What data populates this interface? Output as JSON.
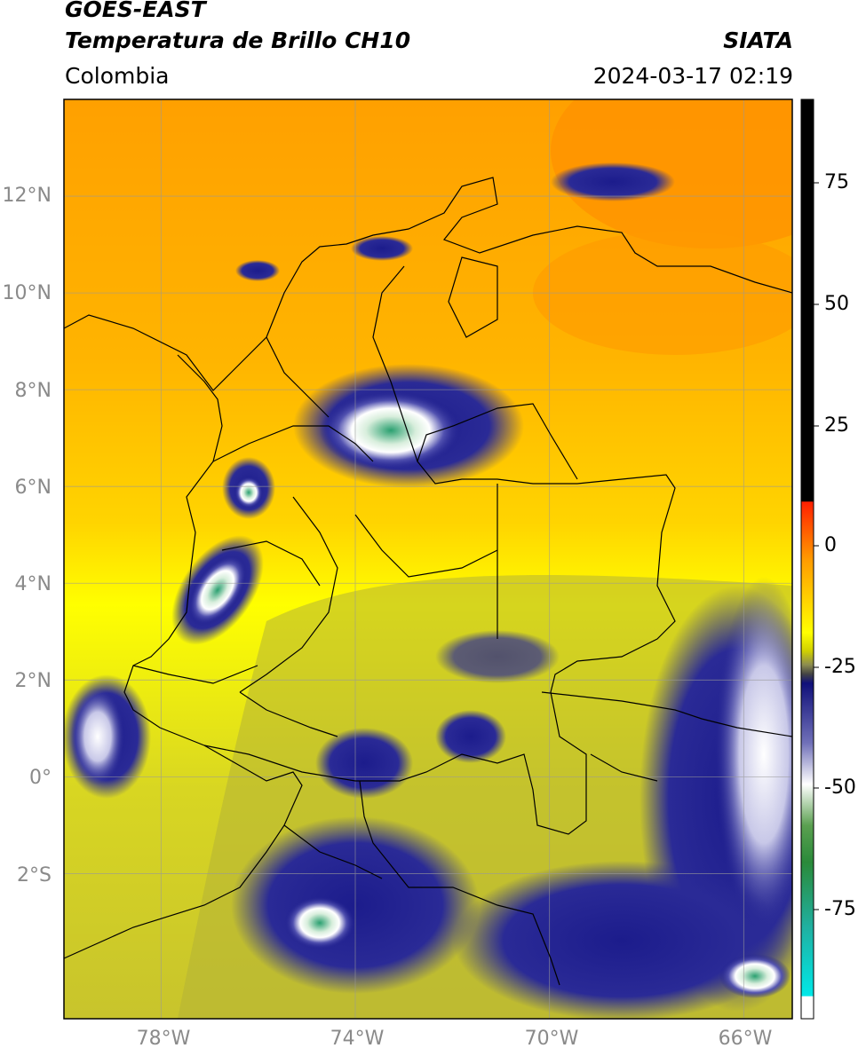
{
  "header": {
    "satellite": "GOES-EAST",
    "product": "Temperatura de Brillo CH10",
    "region": "Colombia",
    "source": "SIATA",
    "datetime": "2024-03-17 02:19"
  },
  "map": {
    "lon_range": [
      -80,
      -65
    ],
    "lat_range": [
      -5,
      14
    ],
    "lat_ticks": [
      "12°N",
      "10°N",
      "8°N",
      "6°N",
      "4°N",
      "2°N",
      "0°",
      "2°S"
    ],
    "lon_ticks": [
      "78°W",
      "74°W",
      "70°W",
      "66°W"
    ],
    "grid": true
  },
  "colorbar": {
    "ticks": [
      "75",
      "50",
      "25",
      "0",
      "-25",
      "-50",
      "-75"
    ],
    "range": [
      -97,
      90
    ],
    "colors": {
      "warm_black": "#000000",
      "red": "#ff2000",
      "orange": "#ff9a00",
      "yellow": "#ffff00",
      "olive": "#a8a83a",
      "navy": "#1c1c8c",
      "white": "#ffffff",
      "green": "#2e8a2e",
      "cyan": "#00e0e0"
    }
  }
}
